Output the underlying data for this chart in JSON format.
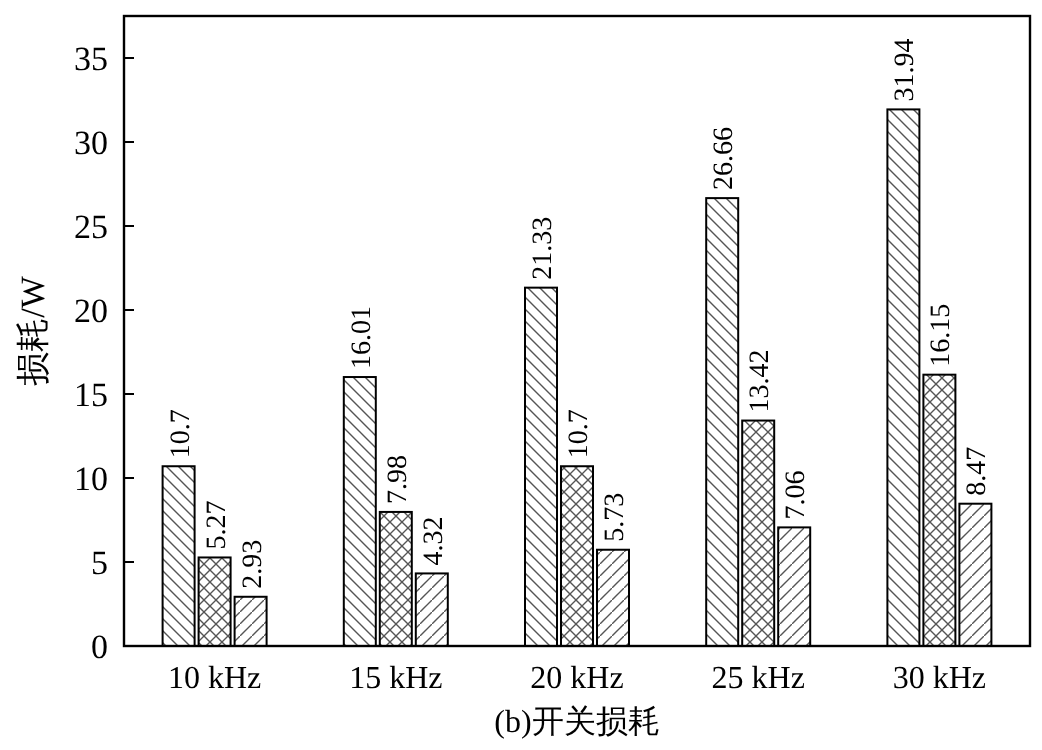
{
  "chart_data": {
    "type": "bar",
    "xlabel": "(b)开关损耗",
    "ylabel": "损耗/W",
    "categories": [
      "10 kHz",
      "15 kHz",
      "20 kHz",
      "25 kHz",
      "30 kHz"
    ],
    "series": [
      {
        "color": "#ffffff",
        "values": [
          10.7,
          16.01,
          21.33,
          26.66,
          31.94
        ]
      },
      {
        "color": "#ffffff",
        "values": [
          5.27,
          7.98,
          10.7,
          13.42,
          16.15
        ]
      },
      {
        "color": "#ffffff",
        "values": [
          2.93,
          4.32,
          5.73,
          7.06,
          8.47
        ]
      }
    ],
    "ylim": [
      0,
      37.5
    ],
    "yticks": [
      0,
      5,
      10,
      15,
      20,
      25,
      30,
      35
    ],
    "grid": false,
    "data_labels": true
  }
}
